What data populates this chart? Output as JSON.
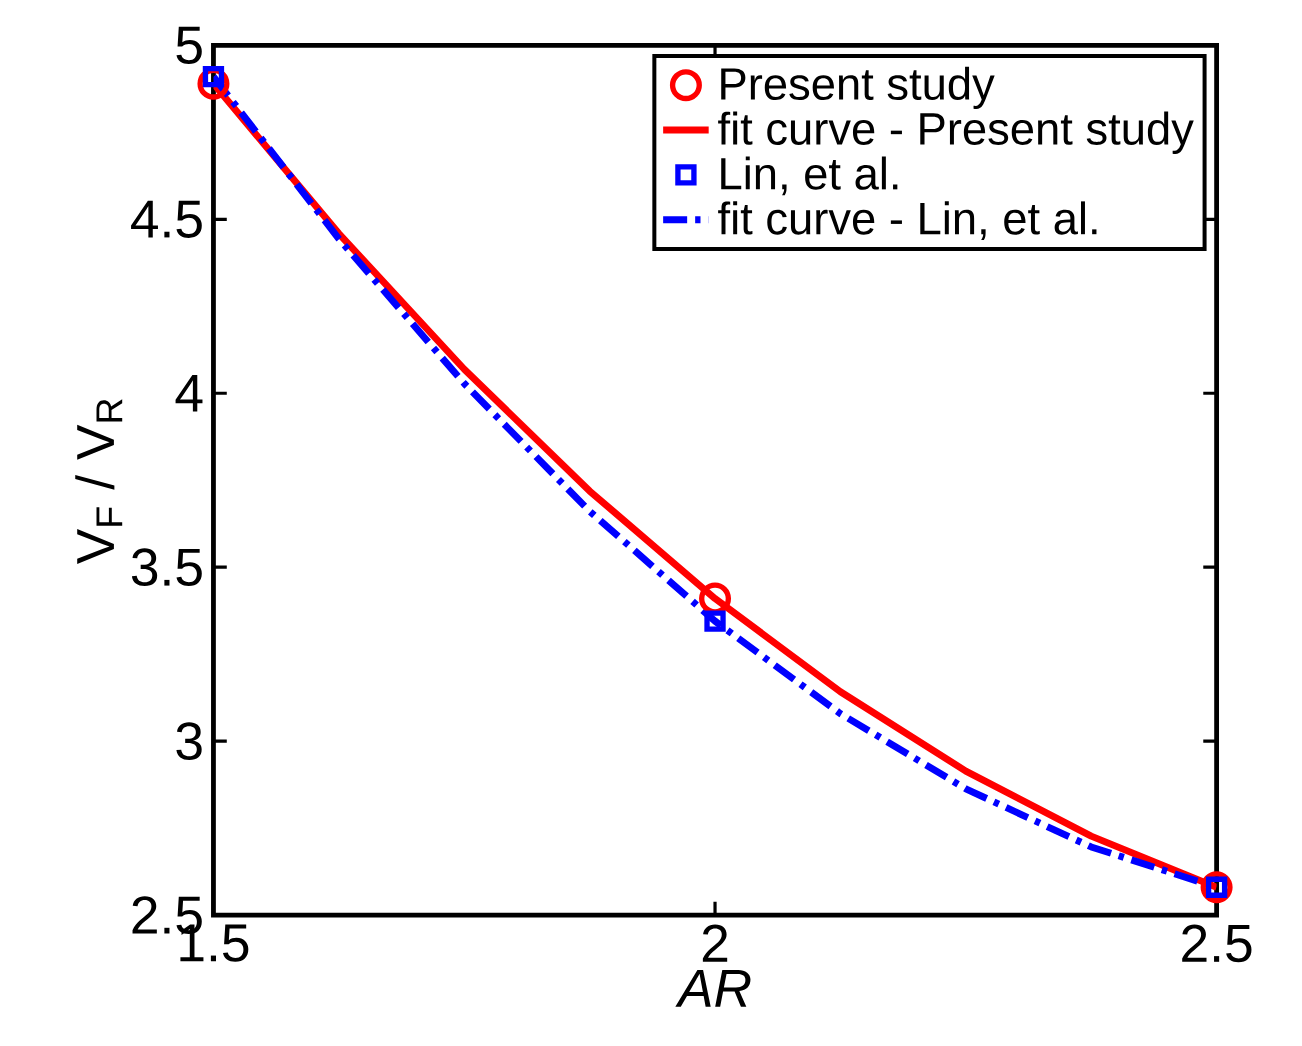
{
  "chart_data": {
    "type": "line",
    "xlabel": "AR",
    "ylabel": "V$_{F}$ / V$_{R}$",
    "xlim": [
      1.5,
      2.5
    ],
    "ylim": [
      2.5,
      5
    ],
    "xticks": [
      1.5,
      2,
      2.5
    ],
    "yticks": [
      2.5,
      3,
      3.5,
      4,
      4.5,
      5
    ],
    "legend": "top right",
    "grid": false,
    "series": [
      {
        "name": "Present study",
        "type": "scatter",
        "marker": "circle",
        "color": "#ff0000",
        "x": [
          1.5,
          2,
          2.5
        ],
        "values": [
          4.89,
          3.41,
          2.58
        ]
      },
      {
        "name": "fit curve - Present study",
        "line_style": "solid",
        "color": "#ff0000",
        "x": [
          1.5,
          1.625,
          1.75,
          1.875,
          2,
          2.125,
          2.25,
          2.375,
          2.5
        ],
        "values": [
          4.89,
          4.459,
          4.069,
          3.719,
          3.41,
          3.142,
          2.914,
          2.727,
          2.58
        ]
      },
      {
        "name": "Lin, et al.",
        "type": "scatter",
        "marker": "square",
        "color": "#0000ff",
        "x": [
          1.5,
          2,
          2.5
        ],
        "values": [
          4.91,
          3.345,
          2.58
        ]
      },
      {
        "name": "fit curve - Lin, et al.",
        "line_style": "dashdot",
        "color": "#0000ff",
        "x": [
          1.5,
          1.625,
          1.75,
          1.875,
          2,
          2.125,
          2.25,
          2.375,
          2.5
        ],
        "values": [
          4.91,
          4.444,
          4.028,
          3.661,
          3.345,
          3.079,
          2.863,
          2.696,
          2.58
        ]
      }
    ]
  }
}
